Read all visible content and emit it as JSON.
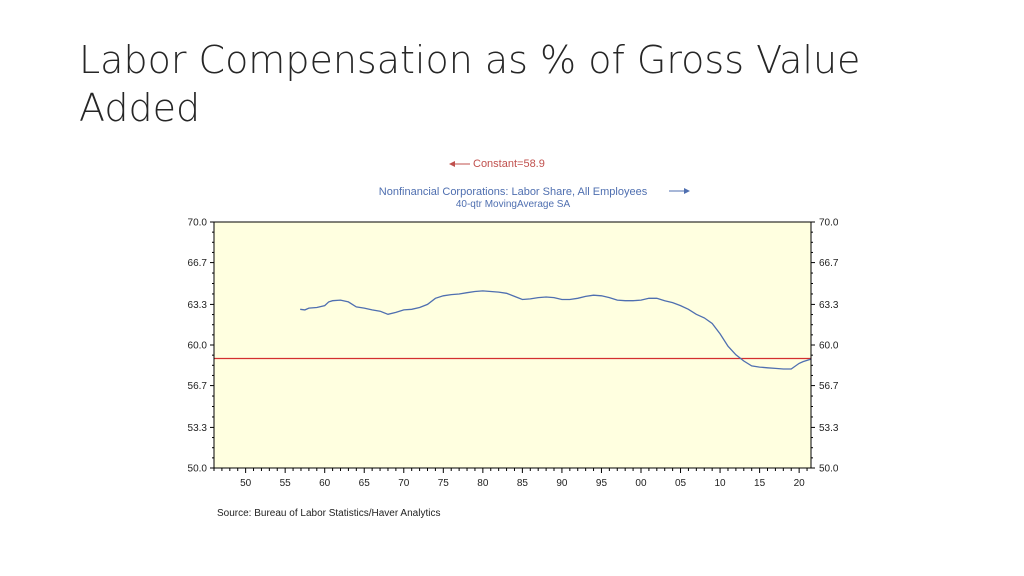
{
  "slide": {
    "title": "Labor Compensation as % of Gross Value Added"
  },
  "chart_data": {
    "type": "line",
    "title": "",
    "xlabel": "",
    "ylabel": "",
    "xlim": [
      1946,
      2021.5
    ],
    "ylim": [
      50.0,
      70.0
    ],
    "x_ticks": [
      1950,
      1955,
      1960,
      1965,
      1970,
      1975,
      1980,
      1985,
      1990,
      1995,
      2000,
      2005,
      2010,
      2015,
      2020
    ],
    "x_tick_labels": [
      "50",
      "55",
      "60",
      "65",
      "70",
      "75",
      "80",
      "85",
      "90",
      "95",
      "00",
      "05",
      "10",
      "15",
      "20"
    ],
    "y_ticks": [
      70.0,
      66.7,
      63.3,
      60.0,
      56.7,
      53.3,
      50.0
    ],
    "y_tick_labels": [
      "70.0",
      "66.7",
      "63.3",
      "60.0",
      "56.7",
      "53.3",
      "50.0"
    ],
    "grid": false,
    "plot_background": "#ffffe0",
    "legend": [
      {
        "label": "Constant=58.9",
        "color": "#c0504d",
        "arrow": "left"
      },
      {
        "label": "Nonfinancial Corporations: Labor Share, All Employees",
        "color": "#4f6fb0",
        "arrow": "right"
      }
    ],
    "legend_sublabel": "40-qtr MovingAverage     SA",
    "source": "Source:  Bureau of Labor Statistics/Haver Analytics",
    "series": [
      {
        "name": "Constant=58.9",
        "color": "#d32f2f",
        "x": [
          1946,
          2021.5
        ],
        "y": [
          58.9,
          58.9
        ]
      },
      {
        "name": "Nonfinancial Corporations: Labor Share, All Employees",
        "color": "#4f6fb0",
        "x": [
          1956.9,
          1957.5,
          1958,
          1959,
          1960,
          1960.5,
          1961,
          1962,
          1963,
          1964,
          1965,
          1966,
          1967,
          1968,
          1969,
          1970,
          1971,
          1972,
          1973,
          1974,
          1975,
          1976,
          1977,
          1978,
          1979,
          1980,
          1981,
          1982,
          1983,
          1984,
          1985,
          1986,
          1987,
          1988,
          1989,
          1990,
          1991,
          1992,
          1993,
          1994,
          1995,
          1996,
          1997,
          1998,
          1999,
          2000,
          2001,
          2002,
          2003,
          2004,
          2005,
          2006,
          2007,
          2008,
          2009,
          2010,
          2011,
          2012,
          2013,
          2014,
          2015,
          2016,
          2017,
          2018,
          2019,
          2020,
          2020.5,
          2021,
          2021.5
        ],
        "y": [
          62.9,
          62.85,
          63.0,
          63.05,
          63.2,
          63.5,
          63.6,
          63.65,
          63.5,
          63.1,
          63.0,
          62.85,
          62.75,
          62.5,
          62.65,
          62.85,
          62.9,
          63.05,
          63.3,
          63.8,
          64.0,
          64.1,
          64.15,
          64.25,
          64.35,
          64.4,
          64.35,
          64.3,
          64.2,
          63.95,
          63.7,
          63.75,
          63.85,
          63.9,
          63.85,
          63.7,
          63.7,
          63.8,
          63.95,
          64.05,
          64.0,
          63.85,
          63.65,
          63.6,
          63.6,
          63.65,
          63.8,
          63.8,
          63.6,
          63.45,
          63.2,
          62.9,
          62.5,
          62.2,
          61.75,
          60.9,
          59.9,
          59.2,
          58.7,
          58.3,
          58.2,
          58.15,
          58.1,
          58.05,
          58.05,
          58.5,
          58.65,
          58.75,
          58.85
        ]
      }
    ]
  }
}
